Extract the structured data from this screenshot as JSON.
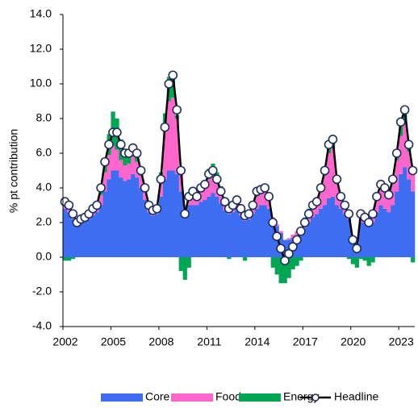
{
  "chart_data": {
    "type": "bar",
    "stacked": true,
    "y_label": "% pt contribution",
    "categories": [
      "2002",
      null,
      null,
      null,
      null,
      null,
      null,
      null,
      null,
      null,
      null,
      null,
      "2005",
      null,
      null,
      null,
      null,
      null,
      null,
      null,
      null,
      null,
      null,
      null,
      "2008",
      null,
      null,
      null,
      null,
      null,
      null,
      null,
      null,
      null,
      null,
      null,
      "2011",
      null,
      null,
      null,
      null,
      null,
      null,
      null,
      null,
      null,
      null,
      null,
      "2014",
      null,
      null,
      null,
      null,
      null,
      null,
      null,
      null,
      null,
      null,
      null,
      "2017",
      null,
      null,
      null,
      null,
      null,
      null,
      null,
      null,
      null,
      null,
      null,
      "2020",
      null,
      null,
      null,
      null,
      null,
      null,
      null,
      null,
      null,
      null,
      null,
      "2023",
      null,
      null,
      null
    ],
    "series": [
      {
        "name": "Core",
        "color": "#3d6ef2",
        "values": [
          2.8,
          2.6,
          2.2,
          1.9,
          2.0,
          2.1,
          2.2,
          2.4,
          2.6,
          3.0,
          3.8,
          4.5,
          5.0,
          5.0,
          4.6,
          4.4,
          4.5,
          4.8,
          4.6,
          4.0,
          3.3,
          2.6,
          2.4,
          2.5,
          3.5,
          4.5,
          5.0,
          5.0,
          4.8,
          3.8,
          2.6,
          3.0,
          3.0,
          3.0,
          3.2,
          3.3,
          3.5,
          3.7,
          3.5,
          3.1,
          2.7,
          2.5,
          2.6,
          2.8,
          2.4,
          2.1,
          2.2,
          2.5,
          2.8,
          3.0,
          3.0,
          2.8,
          2.0,
          1.8,
          1.4,
          1.0,
          1.0,
          1.1,
          1.2,
          1.3,
          1.7,
          2.0,
          2.3,
          2.5,
          2.8,
          3.0,
          3.4,
          3.5,
          3.0,
          2.8,
          2.5,
          2.2,
          1.2,
          0.8,
          2.0,
          2.0,
          1.8,
          2.0,
          2.6,
          3.0,
          2.8,
          2.6,
          3.0,
          3.8,
          4.8,
          5.2,
          4.5,
          3.8
        ]
      },
      {
        "name": "Food",
        "color": "#ff66cc",
        "values": [
          0.3,
          0.3,
          0.2,
          0.2,
          0.2,
          0.2,
          0.3,
          0.3,
          0.3,
          0.6,
          1.1,
          1.4,
          1.4,
          1.2,
          1.0,
          0.9,
          0.9,
          1.0,
          0.9,
          0.7,
          0.5,
          0.3,
          0.3,
          0.3,
          1.0,
          2.8,
          4.0,
          4.2,
          3.2,
          1.0,
          0.2,
          0.3,
          0.5,
          0.4,
          0.6,
          0.7,
          1.0,
          1.1,
          0.9,
          0.6,
          0.4,
          0.3,
          0.3,
          0.4,
          0.3,
          0.3,
          0.3,
          0.4,
          0.7,
          0.7,
          0.8,
          0.6,
          0.3,
          0.1,
          0.1,
          0.0,
          0.1,
          0.2,
          0.3,
          0.4,
          0.5,
          0.6,
          0.7,
          0.7,
          1.1,
          1.7,
          2.6,
          2.8,
          1.2,
          0.6,
          0.4,
          0.3,
          0.0,
          0.0,
          0.3,
          0.3,
          0.3,
          0.4,
          0.7,
          1.0,
          1.0,
          0.9,
          1.2,
          1.8,
          2.2,
          2.5,
          1.6,
          1.0
        ]
      },
      {
        "name": "Energy",
        "color": "#00a651",
        "values": [
          -0.2,
          -0.2,
          -0.1,
          0.0,
          0.1,
          0.2,
          0.2,
          0.2,
          0.2,
          0.4,
          0.8,
          1.2,
          2.0,
          1.8,
          1.2,
          0.8,
          0.6,
          0.6,
          0.4,
          0.2,
          0.1,
          0.1,
          0.1,
          0.1,
          0.4,
          1.0,
          1.4,
          1.2,
          0.2,
          -0.8,
          -1.3,
          -0.6,
          0.3,
          0.5,
          0.4,
          0.3,
          0.6,
          0.6,
          0.5,
          0.4,
          0.1,
          -0.1,
          0.0,
          0.2,
          0.1,
          -0.2,
          0.1,
          0.2,
          0.4,
          0.4,
          0.3,
          0.1,
          -0.6,
          -1.0,
          -1.5,
          -1.5,
          -1.2,
          -0.7,
          -0.5,
          -0.2,
          0.1,
          0.2,
          0.2,
          0.2,
          0.3,
          0.4,
          0.6,
          0.6,
          0.3,
          0.1,
          0.1,
          -0.1,
          -0.4,
          -0.6,
          -0.1,
          -0.2,
          -0.5,
          -0.3,
          0.2,
          0.3,
          0.3,
          0.2,
          0.3,
          0.5,
          0.8,
          1.0,
          0.4,
          -0.3
        ]
      },
      {
        "name": "Headline",
        "type": "line",
        "color": "#000000",
        "marker_color": "#1f2d5c",
        "values": [
          3.2,
          3.0,
          2.5,
          2.0,
          2.2,
          2.3,
          2.5,
          2.8,
          3.0,
          4.0,
          5.5,
          6.5,
          7.2,
          7.2,
          6.5,
          6.0,
          6.0,
          6.3,
          6.0,
          5.0,
          4.0,
          3.0,
          2.7,
          2.8,
          4.5,
          7.5,
          10.0,
          10.5,
          8.5,
          5.0,
          2.5,
          3.5,
          3.8,
          3.5,
          4.0,
          4.2,
          4.8,
          5.0,
          4.5,
          3.8,
          3.2,
          2.8,
          3.0,
          3.3,
          2.8,
          2.4,
          2.5,
          3.0,
          3.8,
          3.9,
          4.0,
          3.5,
          2.0,
          1.2,
          0.5,
          -0.2,
          0.2,
          0.6,
          1.0,
          1.5,
          2.0,
          2.5,
          3.0,
          3.2,
          4.0,
          5.0,
          6.5,
          6.8,
          4.5,
          3.5,
          3.0,
          2.5,
          1.0,
          0.5,
          2.5,
          2.3,
          2.0,
          2.5,
          3.5,
          4.2,
          4.0,
          3.6,
          4.5,
          6.0,
          7.8,
          8.5,
          6.5,
          5.0
        ]
      }
    ],
    "ylim": [
      -4,
      14
    ],
    "yticks": [
      {
        "value": -4,
        "label": "-4.0"
      },
      {
        "value": -2,
        "label": "-2.0"
      },
      {
        "value": 0,
        "label": "0.0"
      },
      {
        "value": 2,
        "label": "2.0"
      },
      {
        "value": 4,
        "label": "4.0"
      },
      {
        "value": 6,
        "label": "6.0"
      },
      {
        "value": 8,
        "label": "8.0"
      },
      {
        "value": 10,
        "label": "10.0"
      },
      {
        "value": 12,
        "label": "12.0"
      },
      {
        "value": 14,
        "label": "14.0"
      }
    ],
    "legend": "bottom"
  }
}
